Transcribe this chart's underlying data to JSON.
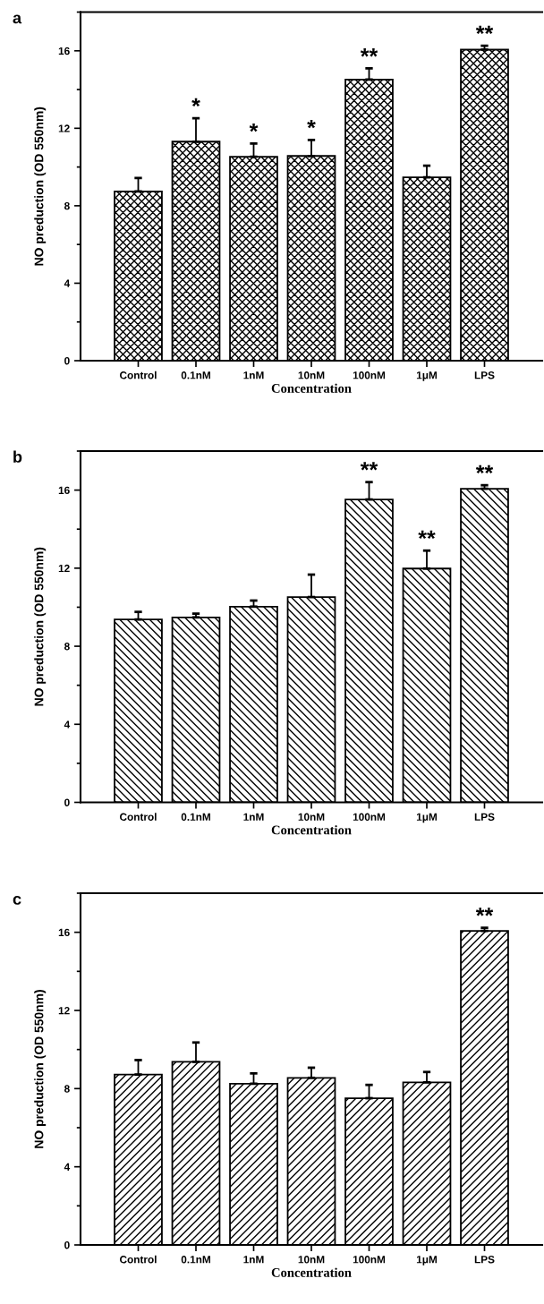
{
  "chart_data": [
    {
      "type": "bar",
      "title": "a",
      "xlabel": "Concentration",
      "ylabel": "NO preduction (OD 550nm)",
      "categories": [
        "Control",
        "0.1nM",
        "1nM",
        "10nM",
        "100nM",
        "1μM",
        "LPS"
      ],
      "series": [
        {
          "color": "#000000",
          "values": [
            8.74,
            11.31,
            10.53,
            10.57,
            14.52,
            9.47,
            16.06
          ],
          "errors": [
            [
              8.74,
              9.43
            ],
            [
              11.31,
              12.52
            ],
            [
              10.53,
              11.21
            ],
            [
              10.57,
              11.4
            ],
            [
              14.52,
              15.09
            ],
            [
              9.47,
              10.07
            ],
            [
              16.06,
              16.26
            ]
          ]
        }
      ],
      "ylim": [
        0,
        18
      ],
      "yticks": [
        0,
        4,
        8,
        12,
        16
      ],
      "annotations": [
        {
          "text": "*",
          "x": "0.1nM",
          "y": 11.31
        },
        {
          "text": "*",
          "x": "1nM",
          "y": 10.53
        },
        {
          "text": "*",
          "x": "10nM",
          "y": 10.57
        },
        {
          "text": "**",
          "x": "100nM",
          "y": 14.52
        },
        {
          "text": "**",
          "x": "LPS",
          "y": 16.06
        }
      ]
    },
    {
      "type": "bar",
      "title": "b",
      "xlabel": "Concentration",
      "ylabel": "NO preduction (OD 550nm)",
      "categories": [
        "Control",
        "0.1nM",
        "1nM",
        "10nM",
        "100nM",
        "1μM",
        "LPS"
      ],
      "series": [
        {
          "color": "#000000",
          "values": [
            9.37,
            9.48,
            10.03,
            10.52,
            15.52,
            11.98,
            16.07
          ],
          "errors": [
            [
              9.37,
              9.76
            ],
            [
              9.48,
              9.67
            ],
            [
              10.03,
              10.34
            ],
            [
              10.52,
              11.67
            ],
            [
              15.52,
              16.41
            ],
            [
              11.98,
              12.9
            ],
            [
              16.07,
              16.25
            ]
          ]
        }
      ],
      "ylim": [
        0,
        18
      ],
      "yticks": [
        0,
        4,
        8,
        12,
        16
      ],
      "annotations": [
        {
          "text": "**",
          "x": "100nM",
          "y": 15.52
        },
        {
          "text": "**",
          "x": "1μM",
          "y": 11.98
        },
        {
          "text": "**",
          "x": "LPS",
          "y": 16.07
        }
      ]
    },
    {
      "type": "bar",
      "title": "c",
      "xlabel": "Concentration",
      "ylabel": "NO preduction (OD 550nm)",
      "categories": [
        "Control",
        "0.1nM",
        "1nM",
        "10nM",
        "100nM",
        "1μM",
        "LPS"
      ],
      "series": [
        {
          "color": "#000000",
          "values": [
            8.72,
            9.37,
            8.25,
            8.55,
            7.51,
            8.32,
            16.07
          ],
          "errors": [
            [
              8.72,
              9.46
            ],
            [
              9.37,
              10.36
            ],
            [
              8.25,
              8.78
            ],
            [
              8.55,
              9.07
            ],
            [
              7.51,
              8.19
            ],
            [
              8.32,
              8.85
            ],
            [
              16.07,
              16.23
            ]
          ]
        }
      ],
      "ylim": [
        0,
        18
      ],
      "yticks": [
        0,
        4,
        8,
        12,
        16
      ],
      "annotations": [
        {
          "text": "**",
          "x": "LPS",
          "y": 16.07
        }
      ]
    }
  ]
}
